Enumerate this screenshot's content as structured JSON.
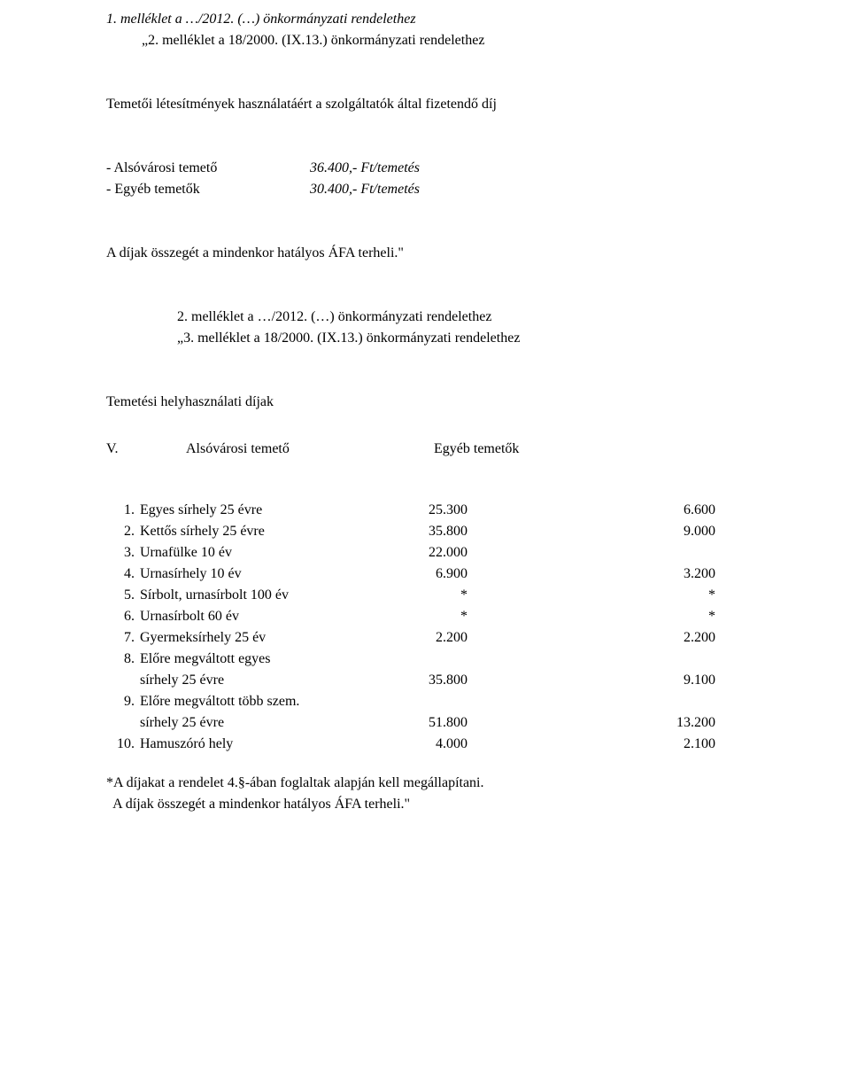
{
  "header1": {
    "title": "1. melléklet a …/2012. (…) önkormányzati rendelethez",
    "subtitle": "„2. melléklet a 18/2000. (IX.13.) önkormányzati rendelethez"
  },
  "section1": {
    "heading": "Temetői létesítmények használatáért a szolgáltatók által fizetendő díj",
    "rows": [
      {
        "label": "- Alsóvárosi temető",
        "value": "36.400,- Ft/temetés"
      },
      {
        "label": "- Egyéb temetők",
        "value": "30.400,- Ft/temetés"
      }
    ],
    "note": "A díjak összegét a mindenkor hatályos ÁFA terheli.\""
  },
  "header2": {
    "title": "2. melléklet a …/2012. (…) önkormányzati rendelethez",
    "subtitle": "„3. melléklet a 18/2000. (IX.13.) önkormányzati rendelethez"
  },
  "section2": {
    "heading": "Temetési helyhasználati díjak",
    "colnum": "V.",
    "col1": "Alsóvárosi temető",
    "col2": "Egyéb temetők",
    "rows": [
      {
        "n": "1",
        "desc": "Egyes sírhely 25 évre",
        "v1": "25.300",
        "v2": "6.600"
      },
      {
        "n": "2",
        "desc": "Kettős sírhely 25 évre",
        "v1": "35.800",
        "v2": "9.000"
      },
      {
        "n": "3",
        "desc": "Urnafülke 10 év",
        "v1": "22.000",
        "v2": ""
      },
      {
        "n": "4",
        "desc": "Urnasírhely 10 év",
        "v1": "6.900",
        "v2": "3.200"
      },
      {
        "n": "5",
        "desc": "Sírbolt, urnasírbolt 100 év",
        "v1": "*",
        "v2": "*"
      },
      {
        "n": "6",
        "desc": "Urnasírbolt 60 év",
        "v1": "*",
        "v2": "*"
      },
      {
        "n": "7",
        "desc": "Gyermeksírhely 25 év",
        "v1": "2.200",
        "v2": "2.200"
      },
      {
        "n": "8",
        "desc": "Előre megváltott egyes",
        "sub": "sírhely 25 évre",
        "v1": "35.800",
        "v2": "9.100"
      },
      {
        "n": "9",
        "desc": "Előre megváltott több szem.",
        "sub": "sírhely 25 évre",
        "v1": "51.800",
        "v2": "13.200"
      },
      {
        "n": "10",
        "desc": "Hamuszóró hely",
        "v1": "4.000",
        "v2": "2.100"
      }
    ],
    "footnote1": "*A díjakat a rendelet 4.§-ában foglaltak alapján kell megállapítani.",
    "footnote2": "  A díjak összegét a mindenkor hatályos ÁFA terheli.\""
  }
}
